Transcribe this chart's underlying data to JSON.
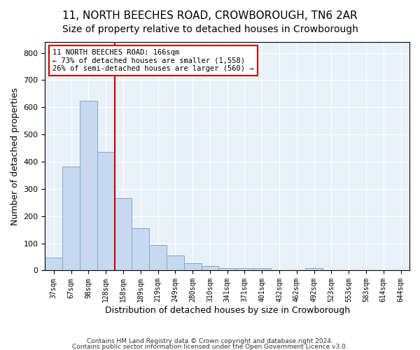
{
  "title_line1": "11, NORTH BEECHES ROAD, CROWBOROUGH, TN6 2AR",
  "title_line2": "Size of property relative to detached houses in Crowborough",
  "xlabel": "Distribution of detached houses by size in Crowborough",
  "ylabel": "Number of detached properties",
  "bin_labels": [
    "37sqm",
    "67sqm",
    "98sqm",
    "128sqm",
    "158sqm",
    "189sqm",
    "219sqm",
    "249sqm",
    "280sqm",
    "310sqm",
    "341sqm",
    "371sqm",
    "401sqm",
    "432sqm",
    "462sqm",
    "492sqm",
    "523sqm",
    "553sqm",
    "583sqm",
    "614sqm",
    "644sqm"
  ],
  "bar_values": [
    47,
    383,
    623,
    437,
    265,
    155,
    95,
    55,
    27,
    17,
    10,
    10,
    10,
    0,
    0,
    8,
    0,
    0,
    0,
    0,
    0
  ],
  "bar_color": "#c6d9f0",
  "bar_edge_color": "#7aaccf",
  "vline_color": "#cc0000",
  "annotation_text": "11 NORTH BEECHES ROAD: 166sqm\n← 73% of detached houses are smaller (1,558)\n26% of semi-detached houses are larger (560) →",
  "annotation_box_color": "#ffffff",
  "annotation_box_edge_color": "#cc0000",
  "ylim": [
    0,
    840
  ],
  "yticks": [
    0,
    100,
    200,
    300,
    400,
    500,
    600,
    700,
    800
  ],
  "plot_background": "#e8f0f8",
  "footer_line1": "Contains HM Land Registry data © Crown copyright and database right 2024.",
  "footer_line2": "Contains public sector information licensed under the Open Government Licence v3.0.",
  "title_fontsize": 11,
  "subtitle_fontsize": 10,
  "tick_fontsize": 7,
  "label_fontsize": 9,
  "annot_fontsize": 7.5
}
